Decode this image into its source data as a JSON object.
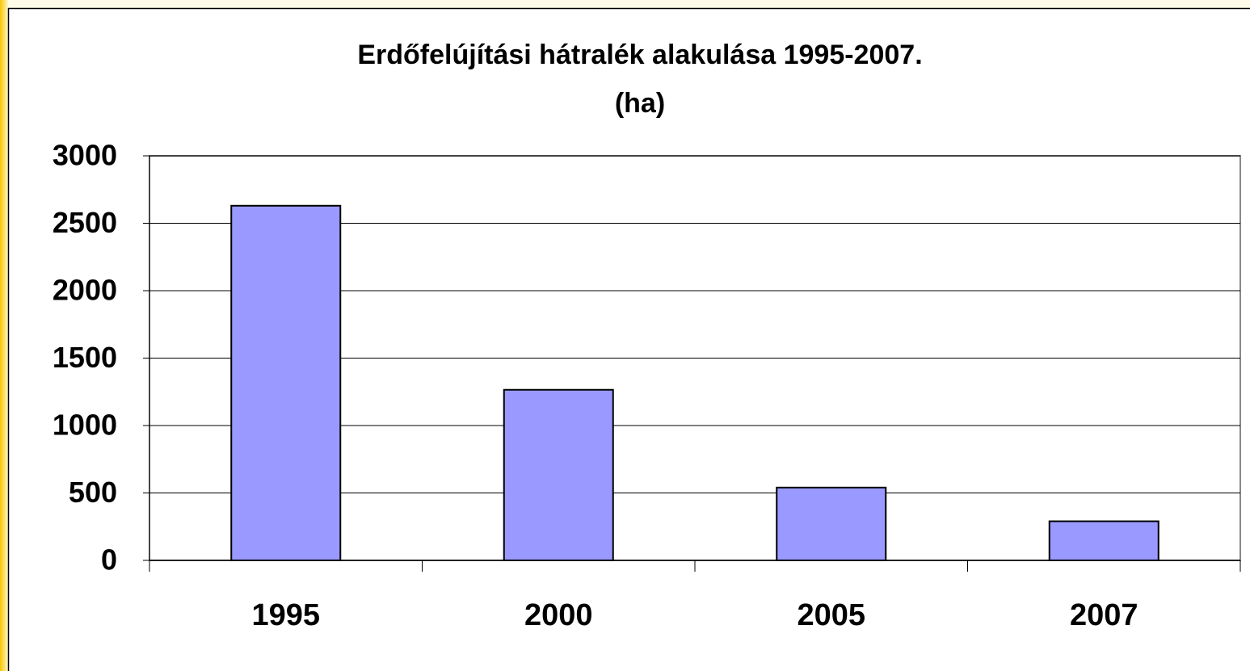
{
  "chart_data": {
    "type": "bar",
    "title": "Erdőfelújítási hátralék alakulása 1995-2007.",
    "subtitle": "(ha)",
    "categories": [
      "1995",
      "2000",
      "2005",
      "2007"
    ],
    "values": [
      2630,
      1265,
      540,
      290
    ],
    "color": "#9999ff",
    "ylim": [
      0,
      3000
    ],
    "yticks": [
      0,
      500,
      1000,
      1500,
      2000,
      2500,
      3000
    ],
    "grid": true
  }
}
